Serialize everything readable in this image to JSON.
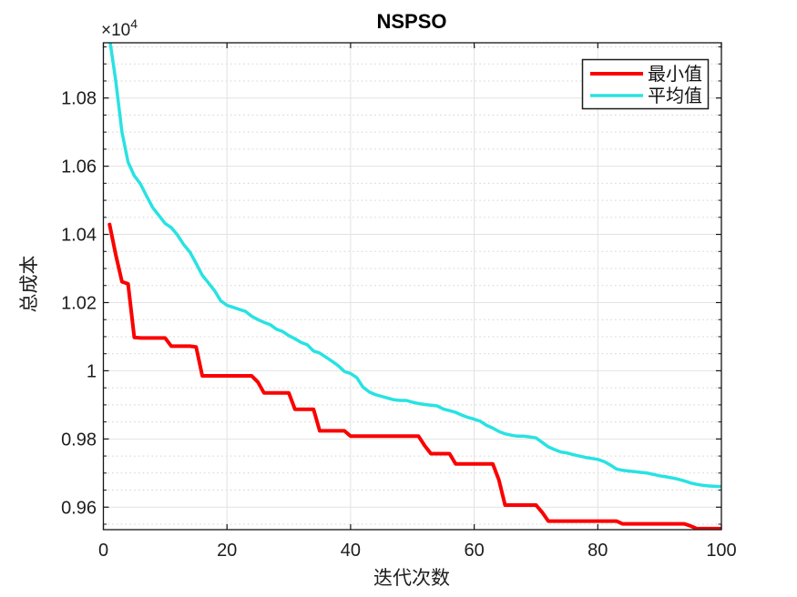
{
  "figure": {
    "title": "NSPSO",
    "background": "#ffffff"
  },
  "axes": {
    "xlabel": "迭代次数",
    "ylabel": "总成本",
    "exponent": {
      "base": "×10",
      "sup": "4"
    },
    "xlim": [
      0,
      100
    ],
    "ylim": [
      9534,
      10962
    ],
    "x_ticks": {
      "values": [
        0,
        20,
        40,
        60,
        80,
        100
      ],
      "labels": [
        "0",
        "20",
        "40",
        "60",
        "80",
        "100"
      ]
    },
    "y_ticks": {
      "values": [
        9600,
        9800,
        10000,
        10200,
        10400,
        10600,
        10800
      ],
      "labels": [
        "0.96",
        "0.98",
        "1",
        "1.02",
        "1.04",
        "1.06",
        "1.08"
      ]
    },
    "y_minor_step": 50,
    "grid": {
      "major_color": "#e2e2e2",
      "minor_color": "#d4d4d4",
      "axis_color": "#141414"
    }
  },
  "legend": {
    "items": [
      {
        "label": "最小值",
        "series": "min"
      },
      {
        "label": "平均值",
        "series": "avg"
      }
    ]
  },
  "chart_data": {
    "type": "line",
    "title": "NSPSO",
    "xlabel": "迭代次数",
    "ylabel": "总成本",
    "x_start": 1,
    "x_end": 100,
    "xlim": [
      0,
      100
    ],
    "ylim": [
      9534,
      10962
    ],
    "grid": "major-solid, y-minor-dotted",
    "legend_position": "top-right-inside",
    "y_axis_note": "values plotted in absolute cost units; axis labeled ×10^4",
    "series": [
      {
        "id": "min",
        "name": "最小值",
        "color": "#fa0000",
        "width": 4,
        "values": [
          10429,
          10340,
          10261,
          10255,
          10098,
          10096,
          10096,
          10096,
          10096,
          10096,
          10072,
          10072,
          10072,
          10072,
          10070,
          9985,
          9985,
          9985,
          9985,
          9985,
          9985,
          9985,
          9985,
          9985,
          9967,
          9935,
          9935,
          9935,
          9935,
          9935,
          9887,
          9887,
          9887,
          9887,
          9824,
          9824,
          9824,
          9824,
          9824,
          9808,
          9808,
          9808,
          9808,
          9808,
          9808,
          9808,
          9808,
          9808,
          9808,
          9808,
          9808,
          9780,
          9757,
          9757,
          9757,
          9757,
          9727,
          9727,
          9727,
          9727,
          9727,
          9727,
          9727,
          9680,
          9606,
          9606,
          9606,
          9606,
          9606,
          9606,
          9585,
          9559,
          9559,
          9559,
          9559,
          9559,
          9559,
          9559,
          9559,
          9559,
          9559,
          9559,
          9559,
          9551,
          9551,
          9551,
          9551,
          9551,
          9551,
          9551,
          9551,
          9551,
          9551,
          9551,
          9545,
          9537,
          9537,
          9537,
          9537,
          9537
        ]
      },
      {
        "id": "avg",
        "name": "平均值",
        "color": "#29e2e2",
        "width": 3.5,
        "values": [
          10975,
          10850,
          10700,
          10612,
          10572,
          10548,
          10512,
          10478,
          10455,
          10432,
          10420,
          10398,
          10370,
          10348,
          10315,
          10280,
          10258,
          10235,
          10205,
          10192,
          10186,
          10180,
          10174,
          10160,
          10150,
          10142,
          10135,
          10122,
          10115,
          10103,
          10094,
          10083,
          10076,
          10058,
          10052,
          10040,
          10028,
          10015,
          9998,
          9992,
          9980,
          9952,
          9938,
          9930,
          9925,
          9920,
          9915,
          9913,
          9913,
          9908,
          9904,
          9901,
          9899,
          9897,
          9888,
          9883,
          9878,
          9870,
          9863,
          9858,
          9852,
          9840,
          9832,
          9822,
          9815,
          9811,
          9808,
          9808,
          9806,
          9803,
          9790,
          9777,
          9769,
          9762,
          9759,
          9754,
          9750,
          9746,
          9743,
          9740,
          9734,
          9724,
          9712,
          9708,
          9706,
          9704,
          9702,
          9700,
          9696,
          9692,
          9689,
          9686,
          9682,
          9677,
          9671,
          9667,
          9664,
          9662,
          9661,
          9660
        ]
      }
    ]
  }
}
